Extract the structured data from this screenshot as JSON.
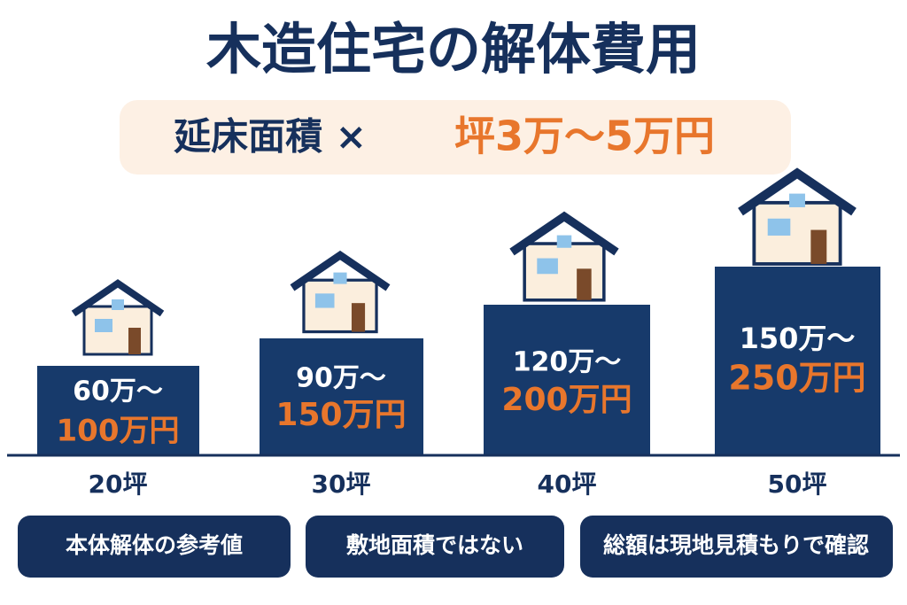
{
  "title": "木造住宅の解体費用",
  "formula": {
    "left": "延床面積 ×",
    "right": "坪3万～5万円"
  },
  "bars": [
    {
      "area": "20坪",
      "low": "60万～",
      "high": "100万円"
    },
    {
      "area": "30坪",
      "low": "90万～",
      "high": "150万円"
    },
    {
      "area": "40坪",
      "low": "120万～",
      "high": "200万円"
    },
    {
      "area": "50坪",
      "low": "150万～",
      "high": "250万円"
    }
  ],
  "notes": [
    "本体解体の参考値",
    "敷地面積ではない",
    "総額は現地見積もりで確認"
  ]
}
